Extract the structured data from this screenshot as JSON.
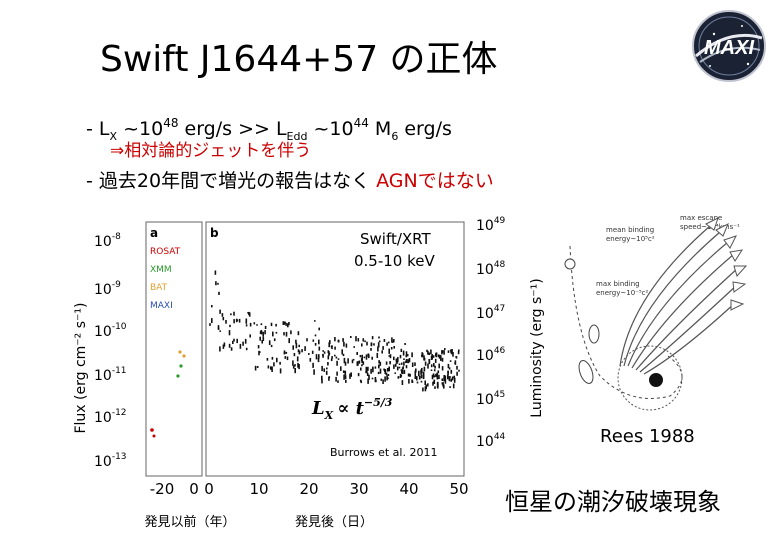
{
  "slide": {
    "title": "Swift J1644+57 の正体",
    "bullet1": {
      "dash": "-",
      "lx": "L",
      "lx_sub": "X",
      "approx1": " ~10",
      "exp1": "48",
      "unit1": " erg/s >> L",
      "edd_sub": "Edd",
      "approx2": " ~10",
      "exp2": "44",
      "mass": " M",
      "mass_sub": "6",
      "unit2": " erg/s",
      "sub": "⇒相対論的ジェットを伴う"
    },
    "bullet2": {
      "dash": "-",
      "text": "過去20年間で増光の報告はなく ",
      "highlight": "AGNではない"
    },
    "rees_label": "Rees 1988",
    "tde_label": "恒星の潮汐破壊現象"
  },
  "colors": {
    "accent_red": "#cc0000",
    "agn_orange": "#d08000",
    "rosat": "#cc0000",
    "xmm": "#2a9a2a",
    "bat": "#e0a030",
    "maxi": "#2850b0"
  },
  "icons": {
    "logo": "maxi-mission-logo"
  },
  "figure": {
    "panel_a_label": "a",
    "panel_b_label": "b",
    "legend": [
      "ROSAT",
      "XMM",
      "BAT",
      "MAXI"
    ],
    "inst_line1": "Swift/XRT",
    "inst_line2": "0.5-10 keV",
    "fit_formula_lhs": "L",
    "fit_formula_sub": "X",
    "fit_formula_rhs": "∝ t",
    "fit_formula_exp": "−5/3",
    "credit": "Burrows et al. 2011",
    "ylabel_left": "Flux (erg cm⁻² s⁻¹)",
    "ylabel_right": "Luminosity (erg s⁻¹)",
    "xlabel_left": "発見以前（年）",
    "xlabel_right": "発見後（日）",
    "flux_ticks": [
      {
        "base": "10",
        "exp": "-8"
      },
      {
        "base": "10",
        "exp": "-9"
      },
      {
        "base": "10",
        "exp": "-10"
      },
      {
        "base": "10",
        "exp": "-11"
      },
      {
        "base": "10",
        "exp": "-12"
      },
      {
        "base": "10",
        "exp": "-13"
      }
    ],
    "lum_ticks": [
      {
        "base": "10",
        "exp": "49"
      },
      {
        "base": "10",
        "exp": "48"
      },
      {
        "base": "10",
        "exp": "47"
      },
      {
        "base": "10",
        "exp": "46"
      },
      {
        "base": "10",
        "exp": "45"
      },
      {
        "base": "10",
        "exp": "44"
      }
    ],
    "x_ticks_a": [
      "-20",
      "0"
    ],
    "x_ticks_b": [
      "0",
      "10",
      "20",
      "30",
      "40",
      "50"
    ]
  },
  "rees_diagram": {
    "ann1": [
      "max escape",
      "speed~10⁴kms⁻¹"
    ],
    "ann2": [
      "mean binding",
      "energy~10⁵c²"
    ],
    "ann3": [
      "max binding",
      "energy~10⁻⁵c²"
    ]
  }
}
